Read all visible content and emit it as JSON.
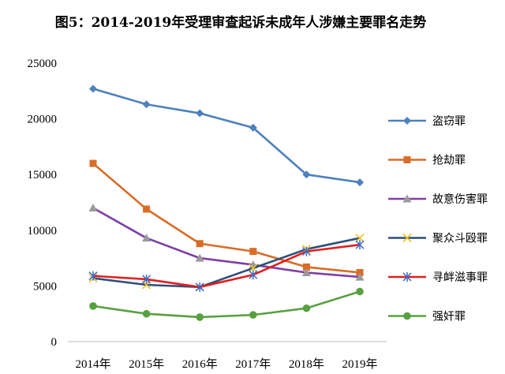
{
  "chart_data": {
    "type": "line",
    "title": "图5：2014-2019年受理审查起诉未成年人涉嫌主要罪名走势",
    "xlabel": "",
    "ylabel": "",
    "categories": [
      "2014年",
      "2015年",
      "2016年",
      "2017年",
      "2018年",
      "2019年"
    ],
    "ylim": [
      0,
      25000
    ],
    "yticks": [
      0,
      5000,
      10000,
      15000,
      20000,
      25000
    ],
    "grid": false,
    "legend_position": "right",
    "series": [
      {
        "name": "盗窃罪",
        "values": [
          22700,
          21300,
          20500,
          19200,
          15000,
          14300
        ],
        "color": "#4e81bd",
        "marker": "diamond"
      },
      {
        "name": "抢劫罪",
        "values": [
          16000,
          11900,
          8800,
          8100,
          6700,
          6200
        ],
        "color": "#d86d27",
        "marker": "square"
      },
      {
        "name": "故意伤害罪",
        "values": [
          12000,
          9300,
          7500,
          6900,
          6200,
          5800
        ],
        "color": "#7f3fa6",
        "marker": "triangle"
      },
      {
        "name": "聚众斗殴罪",
        "values": [
          5700,
          5100,
          4900,
          6600,
          8300,
          9300
        ],
        "color": "#2f4f78",
        "marker": "x",
        "marker_color": "#f0c020"
      },
      {
        "name": "寻衅滋事罪",
        "values": [
          5900,
          5600,
          4900,
          6000,
          8100,
          8700
        ],
        "color": "#e02020",
        "marker": "star",
        "marker_color": "#3a6bc8"
      },
      {
        "name": "强奸罪",
        "values": [
          3200,
          2500,
          2200,
          2400,
          3000,
          4500
        ],
        "color": "#58a040",
        "marker": "circle"
      }
    ]
  }
}
